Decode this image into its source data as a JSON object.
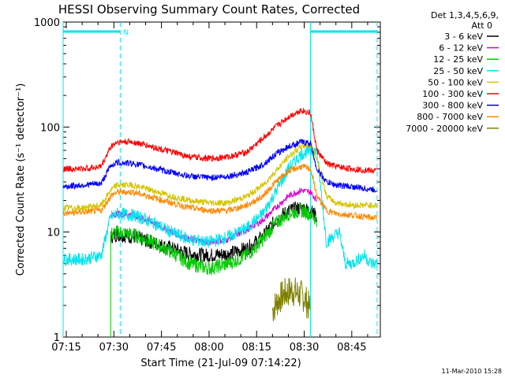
{
  "chart_data": {
    "type": "line",
    "title": "HESSI Observing Summary Count Rates, Corrected",
    "xlabel": "Start Time (21-Jul-09 07:14:22)",
    "ylabel": "Corrected Count Rate (s⁻¹ detector⁻¹)",
    "y_scale": "log",
    "ylim": [
      1,
      1000
    ],
    "xlim_minutes": [
      434,
      534
    ],
    "x_ticks": [
      {
        "m": 435,
        "label": "07:15"
      },
      {
        "m": 450,
        "label": "07:30"
      },
      {
        "m": 465,
        "label": "07:45"
      },
      {
        "m": 480,
        "label": "08:00"
      },
      {
        "m": 495,
        "label": "08:15"
      },
      {
        "m": 510,
        "label": "08:30"
      },
      {
        "m": 525,
        "label": "08:45"
      }
    ],
    "y_ticks": [
      {
        "v": 1,
        "label": "1"
      },
      {
        "v": 10,
        "label": "10"
      },
      {
        "v": 100,
        "label": "100"
      },
      {
        "v": 1000,
        "label": "1000"
      }
    ],
    "legend_header": [
      "Det 1,3,4,5,6,9,",
      "Att 0"
    ],
    "legend_placement": "right",
    "footer_date": "11-Mar-2010 15:28",
    "flag_label": "N",
    "series": [
      {
        "name": "3 - 6 keV",
        "color": "#000000",
        "x": [
          449,
          451,
          456,
          462,
          468,
          474,
          480,
          486,
          492,
          497,
          501,
          505,
          509,
          512,
          514
        ],
        "y": [
          9,
          9.5,
          9,
          8,
          7,
          6.2,
          6,
          6.2,
          7,
          9,
          13,
          16,
          17,
          16,
          14
        ]
      },
      {
        "name": "6 - 12 keV",
        "color": "#dd00dd",
        "x": [
          449,
          451,
          456,
          462,
          468,
          474,
          480,
          486,
          492,
          497,
          501,
          505,
          509,
          512,
          514
        ],
        "y": [
          14,
          15,
          14.5,
          12.5,
          10,
          8.5,
          8,
          8.5,
          10.5,
          13,
          17,
          22,
          25,
          24,
          20
        ]
      },
      {
        "name": "12 - 25 keV",
        "color": "#00cc00",
        "x": [
          449,
          451,
          456,
          462,
          468,
          474,
          480,
          486,
          492,
          497,
          501,
          505,
          509,
          512,
          514
        ],
        "y": [
          9.5,
          10,
          9.5,
          8,
          6.5,
          5,
          4.5,
          5,
          6,
          8.5,
          12,
          15,
          16,
          15,
          13
        ]
      },
      {
        "name": "25 - 50 keV",
        "color": "#00e5ee",
        "x": [
          434,
          440,
          446,
          449,
          451,
          456,
          462,
          468,
          474,
          480,
          486,
          492,
          497,
          501,
          505,
          509,
          512,
          514,
          517,
          519,
          521,
          523,
          525,
          527,
          529,
          531,
          533
        ],
        "y": [
          5.5,
          5.5,
          6,
          14,
          15,
          14.5,
          12.5,
          10,
          8.5,
          8,
          9,
          11,
          15,
          24,
          40,
          55,
          60,
          58,
          8,
          9,
          10,
          5,
          5,
          5.5,
          6,
          5,
          5
        ]
      },
      {
        "name": "50 - 100 keV",
        "color": "#d4c400",
        "x": [
          434,
          440,
          446,
          449,
          451,
          456,
          462,
          468,
          474,
          480,
          486,
          492,
          497,
          501,
          505,
          509,
          512,
          514,
          517,
          520,
          525,
          533
        ],
        "y": [
          17,
          17,
          18,
          25,
          28,
          28,
          25,
          22,
          20,
          19,
          19,
          22,
          28,
          38,
          52,
          65,
          68,
          50,
          22,
          19,
          18,
          18
        ]
      },
      {
        "name": "100 - 300 keV",
        "color": "#ff0000",
        "x": [
          434,
          440,
          446,
          449,
          451,
          456,
          462,
          468,
          474,
          480,
          486,
          492,
          497,
          501,
          505,
          509,
          512,
          514,
          517,
          520,
          525,
          533
        ],
        "y": [
          40,
          40,
          42,
          65,
          72,
          72,
          65,
          58,
          52,
          50,
          52,
          58,
          78,
          100,
          125,
          145,
          135,
          60,
          45,
          42,
          40,
          38
        ]
      },
      {
        "name": "300 - 800 keV",
        "color": "#0000ff",
        "x": [
          434,
          440,
          446,
          449,
          451,
          456,
          462,
          468,
          474,
          480,
          486,
          492,
          497,
          501,
          505,
          509,
          512,
          514,
          517,
          520,
          525,
          533
        ],
        "y": [
          27,
          28,
          29,
          43,
          46,
          45,
          41,
          37,
          34,
          33,
          34,
          37,
          44,
          55,
          65,
          72,
          70,
          40,
          30,
          28,
          27,
          25
        ]
      },
      {
        "name": "800 - 7000 keV",
        "color": "#ff8800",
        "x": [
          434,
          440,
          446,
          449,
          451,
          456,
          462,
          468,
          474,
          480,
          486,
          492,
          497,
          501,
          505,
          509,
          512,
          514,
          517,
          520,
          525,
          533
        ],
        "y": [
          15,
          15.5,
          16,
          22,
          24,
          24,
          21.5,
          19,
          17,
          16,
          16,
          18,
          22,
          30,
          38,
          42,
          40,
          22,
          16,
          15,
          14.5,
          13.5
        ]
      },
      {
        "name": "7000 - 20000 keV",
        "color": "#808000",
        "x": [
          500,
          502,
          504,
          506,
          508,
          510,
          512
        ],
        "y": [
          1.8,
          2.3,
          2.6,
          2.8,
          2.6,
          2.4,
          1.8
        ]
      }
    ],
    "attenuator_markers": [
      {
        "from": 434,
        "to": 452,
        "label": "N"
      },
      {
        "from": 512,
        "to": 533,
        "label": ""
      }
    ],
    "vertical_markers": [
      {
        "m": 434,
        "style": "solid"
      },
      {
        "m": 452,
        "style": "dashed"
      },
      {
        "m": 512,
        "style": "solid"
      },
      {
        "m": 533,
        "style": "dashed"
      }
    ]
  }
}
